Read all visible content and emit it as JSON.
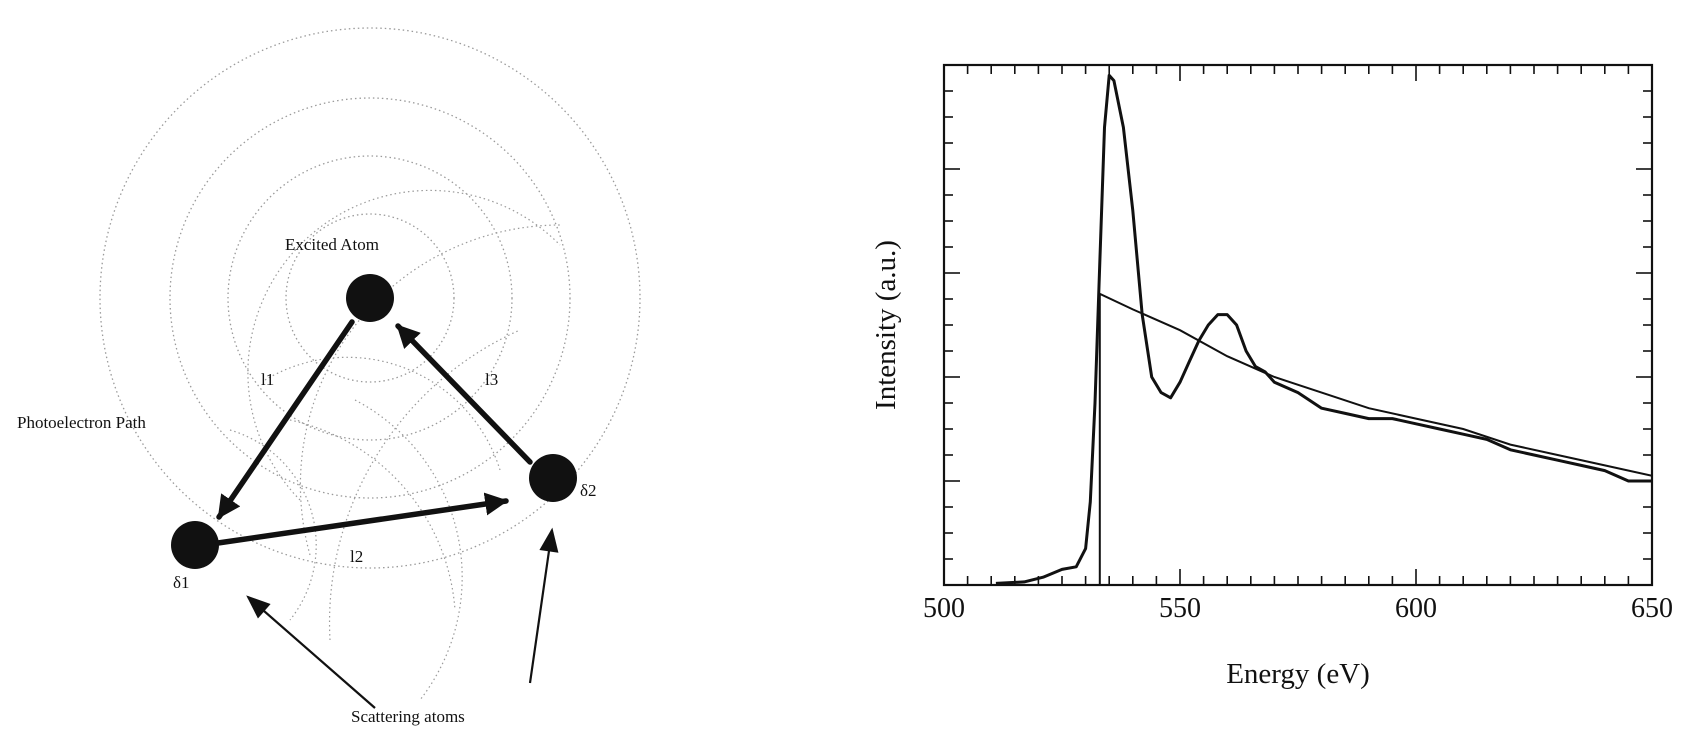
{
  "diagram": {
    "label_excited_atom": "Excited Atom",
    "label_photoelectron_path": "Photoelectron Path",
    "label_scattering_atoms": "Scattering atoms",
    "label_l1": "l1",
    "label_l2": "l2",
    "label_l3": "l3",
    "label_delta1": "δ1",
    "label_delta2": "δ2"
  },
  "chart_data": {
    "type": "line",
    "xlabel": "Energy (eV)",
    "ylabel": "Intensity (a.u.)",
    "xlim": [
      500,
      650
    ],
    "xticks": [
      500,
      550,
      600,
      650
    ],
    "xtick_labels": [
      "500",
      "550",
      "600",
      "650"
    ],
    "ylim": [
      0,
      1
    ],
    "y_tick_labels_shown": false,
    "grid": false,
    "series": [
      {
        "role": "measured spectrum",
        "x": [
          511,
          517,
          521,
          525,
          528,
          530,
          531,
          532,
          533,
          534,
          535,
          536,
          538,
          540,
          542,
          544,
          546,
          548,
          550,
          552,
          554,
          556,
          558,
          560,
          562,
          564,
          566,
          568,
          570,
          575,
          580,
          585,
          590,
          595,
          600,
          605,
          610,
          615,
          620,
          625,
          630,
          635,
          640,
          645,
          650
        ],
        "y": [
          0.003,
          0.006,
          0.015,
          0.03,
          0.035,
          0.07,
          0.16,
          0.35,
          0.62,
          0.88,
          0.98,
          0.97,
          0.88,
          0.72,
          0.52,
          0.4,
          0.37,
          0.36,
          0.39,
          0.43,
          0.47,
          0.5,
          0.52,
          0.52,
          0.5,
          0.45,
          0.42,
          0.41,
          0.39,
          0.37,
          0.34,
          0.33,
          0.32,
          0.32,
          0.31,
          0.3,
          0.29,
          0.28,
          0.26,
          0.25,
          0.24,
          0.23,
          0.22,
          0.2,
          0.2
        ]
      },
      {
        "role": "atomic background (step)",
        "x": [
          533,
          533,
          540,
          550,
          560,
          570,
          580,
          590,
          600,
          610,
          620,
          630,
          640,
          650
        ],
        "y": [
          0,
          0.56,
          0.53,
          0.49,
          0.44,
          0.4,
          0.37,
          0.34,
          0.32,
          0.3,
          0.27,
          0.25,
          0.23,
          0.21
        ]
      }
    ]
  }
}
